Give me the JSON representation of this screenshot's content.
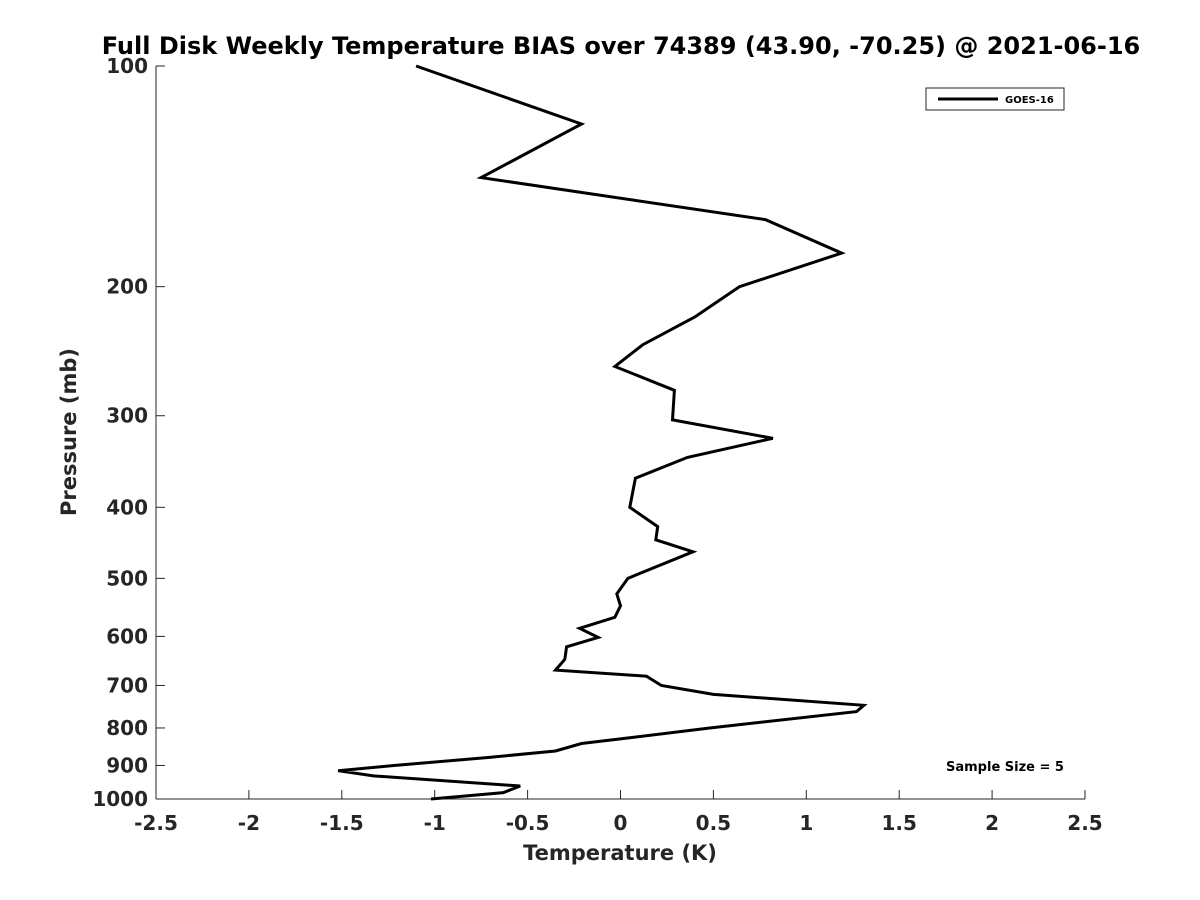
{
  "chart_data": {
    "type": "line",
    "title": "Full Disk Weekly Temperature BIAS over 74389 (43.90, -70.25) @ 2021-06-16",
    "xlabel": "Temperature (K)",
    "ylabel": "Pressure (mb)",
    "xlim": [
      -2.5,
      2.5
    ],
    "ylim": [
      100,
      1000
    ],
    "y_scale": "log",
    "y_reversed": true,
    "grid": false,
    "legend_position": "top-right",
    "x_ticks": [
      -2.5,
      -2,
      -1.5,
      -1,
      -0.5,
      0,
      0.5,
      1,
      1.5,
      2,
      2.5
    ],
    "x_tick_labels": [
      "-2.5",
      "-2",
      "-1.5",
      "-1",
      "-0.5",
      "0",
      "0.5",
      "1",
      "1.5",
      "2",
      "2.5"
    ],
    "y_ticks": [
      100,
      200,
      300,
      400,
      500,
      600,
      700,
      800,
      900,
      1000
    ],
    "y_tick_labels": [
      "100",
      "200",
      "300",
      "400",
      "500",
      "600",
      "700",
      "800",
      "900",
      "1000"
    ],
    "series": [
      {
        "name": "GOES-16",
        "color": "#000000",
        "points": [
          {
            "x": -1.1,
            "y": 100
          },
          {
            "x": -0.21,
            "y": 120
          },
          {
            "x": -0.75,
            "y": 142
          },
          {
            "x": 0.78,
            "y": 162
          },
          {
            "x": 1.19,
            "y": 180
          },
          {
            "x": 0.64,
            "y": 200
          },
          {
            "x": 0.4,
            "y": 220
          },
          {
            "x": 0.12,
            "y": 240
          },
          {
            "x": -0.03,
            "y": 257
          },
          {
            "x": 0.29,
            "y": 277
          },
          {
            "x": 0.28,
            "y": 304
          },
          {
            "x": 0.82,
            "y": 322
          },
          {
            "x": 0.36,
            "y": 342
          },
          {
            "x": 0.08,
            "y": 365
          },
          {
            "x": 0.05,
            "y": 400
          },
          {
            "x": 0.2,
            "y": 425
          },
          {
            "x": 0.19,
            "y": 443
          },
          {
            "x": 0.39,
            "y": 460
          },
          {
            "x": 0.04,
            "y": 500
          },
          {
            "x": -0.02,
            "y": 525
          },
          {
            "x": 0.0,
            "y": 545
          },
          {
            "x": -0.03,
            "y": 565
          },
          {
            "x": -0.22,
            "y": 585
          },
          {
            "x": -0.12,
            "y": 602
          },
          {
            "x": -0.29,
            "y": 620
          },
          {
            "x": -0.3,
            "y": 645
          },
          {
            "x": -0.35,
            "y": 667
          },
          {
            "x": 0.14,
            "y": 680
          },
          {
            "x": 0.22,
            "y": 700
          },
          {
            "x": 0.5,
            "y": 720
          },
          {
            "x": 1.31,
            "y": 745
          },
          {
            "x": 1.27,
            "y": 760
          },
          {
            "x": 0.48,
            "y": 800
          },
          {
            "x": 0.05,
            "y": 825
          },
          {
            "x": -0.21,
            "y": 840
          },
          {
            "x": -0.35,
            "y": 860
          },
          {
            "x": -0.72,
            "y": 878
          },
          {
            "x": -1.22,
            "y": 900
          },
          {
            "x": -1.52,
            "y": 915
          },
          {
            "x": -1.33,
            "y": 930
          },
          {
            "x": -0.54,
            "y": 960
          },
          {
            "x": -0.63,
            "y": 980
          },
          {
            "x": -1.02,
            "y": 1000
          }
        ]
      }
    ],
    "annotations": [
      "Sample Size = 5"
    ]
  }
}
